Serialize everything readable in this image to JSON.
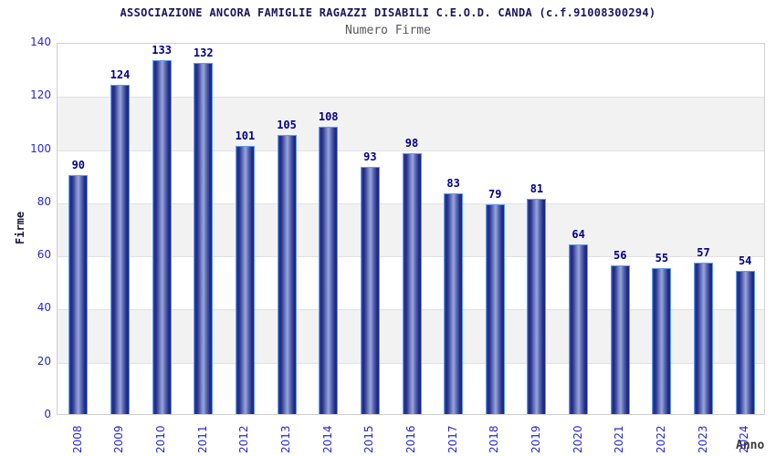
{
  "chart_data": {
    "type": "bar",
    "title": "ASSOCIAZIONE ANCORA FAMIGLIE RAGAZZI DISABILI C.E.O.D. CANDA (c.f.91008300294)",
    "subtitle": "Numero Firme",
    "xlabel": "Anno",
    "ylabel": "Firme",
    "categories": [
      "2008",
      "2009",
      "2010",
      "2011",
      "2012",
      "2013",
      "2014",
      "2015",
      "2016",
      "2017",
      "2018",
      "2019",
      "2020",
      "2021",
      "2022",
      "2023",
      "2024"
    ],
    "values": [
      90,
      124,
      133,
      132,
      101,
      105,
      108,
      93,
      98,
      83,
      79,
      81,
      64,
      56,
      55,
      57,
      54
    ],
    "ylim": [
      0,
      140
    ],
    "ytick_step": 20,
    "yticks": [
      0,
      20,
      40,
      60,
      80,
      100,
      120,
      140
    ],
    "grid": "alternating-horizontal-bands",
    "legend": "none",
    "bar_labels_shown": true,
    "colors": {
      "title": "#16165d",
      "subtitle": "#58585a",
      "tick_labels": "#2626cf",
      "bar_value_labels": "#00008b",
      "bar_dark": "#1d2884",
      "bar_highlight": "#9aa6d8",
      "bar_outline": "#5b9bf0",
      "band_gray": "#f2f2f2",
      "plot_border": "#cfcfcf",
      "axis_label": "#16163c",
      "background": "#ffffff"
    }
  }
}
